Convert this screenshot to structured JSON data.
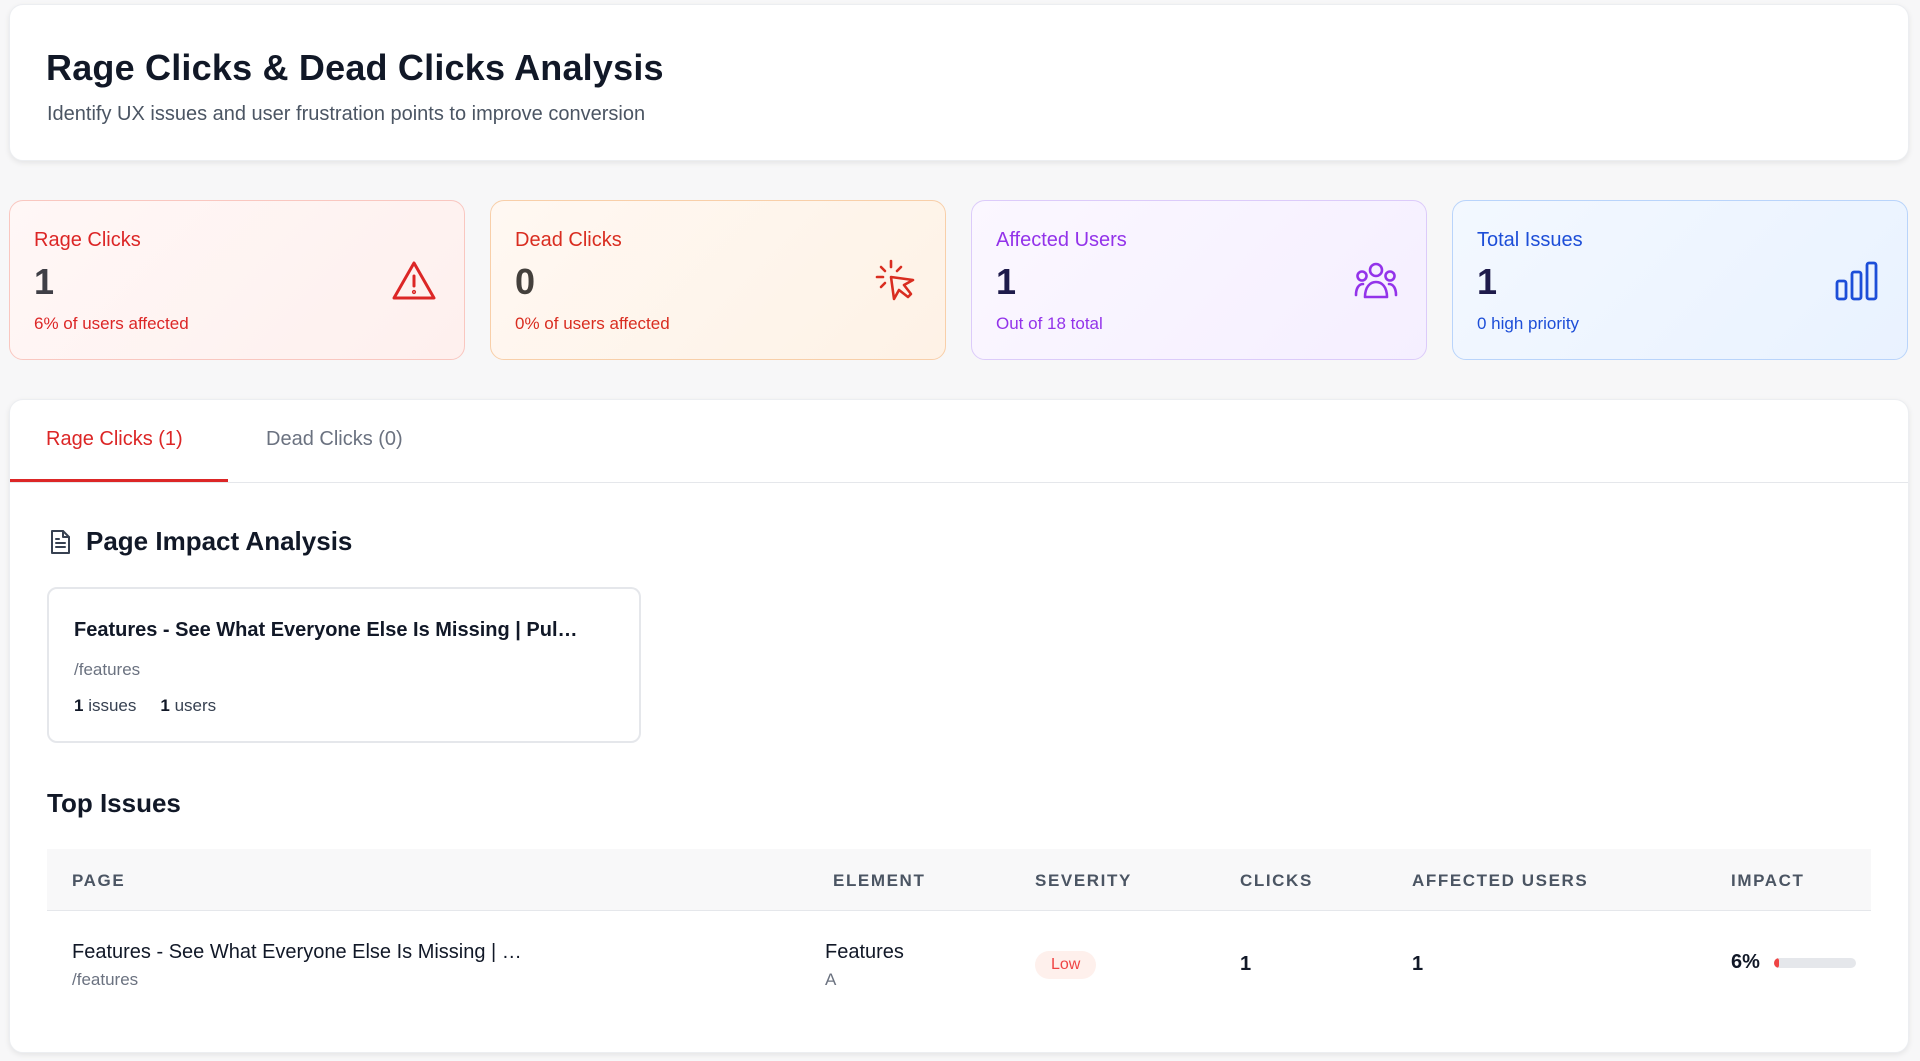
{
  "header": {
    "title": "Rage Clicks & Dead Clicks Analysis",
    "subtitle": "Identify UX issues and user frustration points to improve conversion"
  },
  "stats": {
    "rage": {
      "label": "Rage Clicks",
      "value": "1",
      "sub": "6% of users affected",
      "icon": "warning-triangle-icon",
      "color": "#dc2626"
    },
    "dead": {
      "label": "Dead Clicks",
      "value": "0",
      "sub": "0% of users affected",
      "icon": "cursor-click-icon",
      "color": "#d92d20"
    },
    "users": {
      "label": "Affected Users",
      "value": "1",
      "sub": "Out of 18 total",
      "icon": "users-group-icon",
      "color": "#9333ea"
    },
    "total": {
      "label": "Total Issues",
      "value": "1",
      "sub": "0 high priority",
      "icon": "bar-chart-icon",
      "color": "#1d4ed8"
    }
  },
  "tabs": [
    {
      "label": "Rage Clicks (1)",
      "active": true
    },
    {
      "label": "Dead Clicks (0)",
      "active": false
    }
  ],
  "page_impact": {
    "title": "Page Impact Analysis",
    "icon": "document-icon",
    "cards": [
      {
        "title": "Features - See What Everyone Else Is Missing | Pul…",
        "path": "/features",
        "issues_count": "1",
        "issues_label": "issues",
        "users_count": "1",
        "users_label": "users"
      }
    ]
  },
  "top_issues": {
    "title": "Top Issues",
    "columns": [
      "PAGE",
      "ELEMENT",
      "SEVERITY",
      "CLICKS",
      "AFFECTED USERS",
      "IMPACT"
    ],
    "rows": [
      {
        "page_title": "Features - See What Everyone Else Is Missing | …",
        "page_path": "/features",
        "element_name": "Features",
        "element_tag": "A",
        "severity": "Low",
        "clicks": "1",
        "affected_users": "1",
        "impact": "6%",
        "impact_fraction": 0.06
      }
    ]
  }
}
